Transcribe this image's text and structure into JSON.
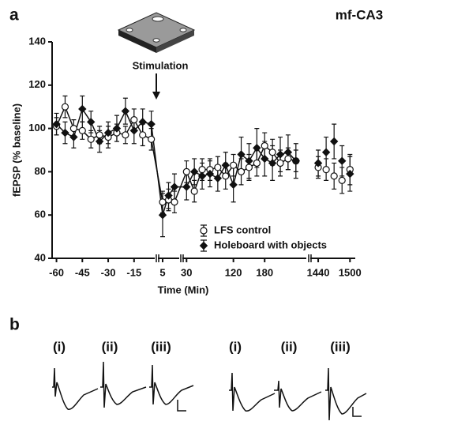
{
  "chart_data": {
    "type": "line",
    "panel_label": "a",
    "title": "mf-CA3",
    "annotation": "Stimulation",
    "y_label": "fEPSP (% baseline)",
    "x_label": "Time (Min)",
    "ylim": [
      40,
      140
    ],
    "yticks": [
      40,
      60,
      80,
      100,
      120,
      140
    ],
    "xsegments": [
      [
        -63,
        -3
      ],
      [
        3,
        12
      ],
      [
        22,
        260
      ],
      [
        1425,
        1510
      ]
    ],
    "xticks": [
      -60,
      -45,
      -30,
      -15,
      5,
      30,
      120,
      180,
      1440,
      1500
    ],
    "legend": "lower-right",
    "x": [
      -60,
      -55,
      -50,
      -45,
      -40,
      -35,
      -30,
      -25,
      -20,
      -15,
      -10,
      -5,
      5,
      7.5,
      10,
      30,
      45,
      60,
      75,
      90,
      105,
      120,
      135,
      150,
      165,
      180,
      195,
      210,
      225,
      240,
      1440,
      1455,
      1470,
      1485,
      1500
    ],
    "series": [
      {
        "name": "LFS control",
        "color": "#ffffff",
        "marker": "circle",
        "values": [
          101,
          110,
          100,
          99,
          95,
          97,
          96,
          98,
          97,
          104,
          97,
          95,
          66,
          67,
          66,
          80,
          71,
          81,
          81,
          82,
          78,
          83,
          80,
          82,
          84,
          92,
          89,
          84,
          86,
          85,
          82,
          81,
          78,
          76,
          81
        ],
        "errors": [
          4,
          5,
          4,
          4,
          4,
          4,
          5,
          4,
          4,
          5,
          5,
          5,
          5,
          5,
          5,
          5,
          5,
          5,
          5,
          5,
          6,
          5,
          6,
          6,
          6,
          6,
          6,
          6,
          5,
          5,
          5,
          5,
          6,
          6,
          7
        ]
      },
      {
        "name": "Holeboard with objects",
        "color": "#111111",
        "marker": "diamond",
        "values": [
          102,
          98,
          96,
          109,
          103,
          94,
          98,
          100,
          108,
          99,
          103,
          102,
          60,
          69,
          73,
          73,
          80,
          78,
          79,
          77,
          83,
          74,
          88,
          85,
          91,
          86,
          84,
          88,
          89,
          85,
          84,
          89,
          94,
          85,
          79
        ],
        "errors": [
          5,
          5,
          5,
          6,
          5,
          5,
          5,
          6,
          6,
          6,
          6,
          6,
          10,
          6,
          6,
          6,
          6,
          6,
          6,
          6,
          6,
          8,
          8,
          8,
          9,
          8,
          8,
          8,
          8,
          8,
          6,
          7,
          8,
          7,
          8
        ]
      }
    ]
  },
  "panel_b": {
    "label": "b",
    "traces": [
      "(i)",
      "(ii)",
      "(iii)",
      "(i)",
      "(ii)",
      "(iii)"
    ]
  }
}
